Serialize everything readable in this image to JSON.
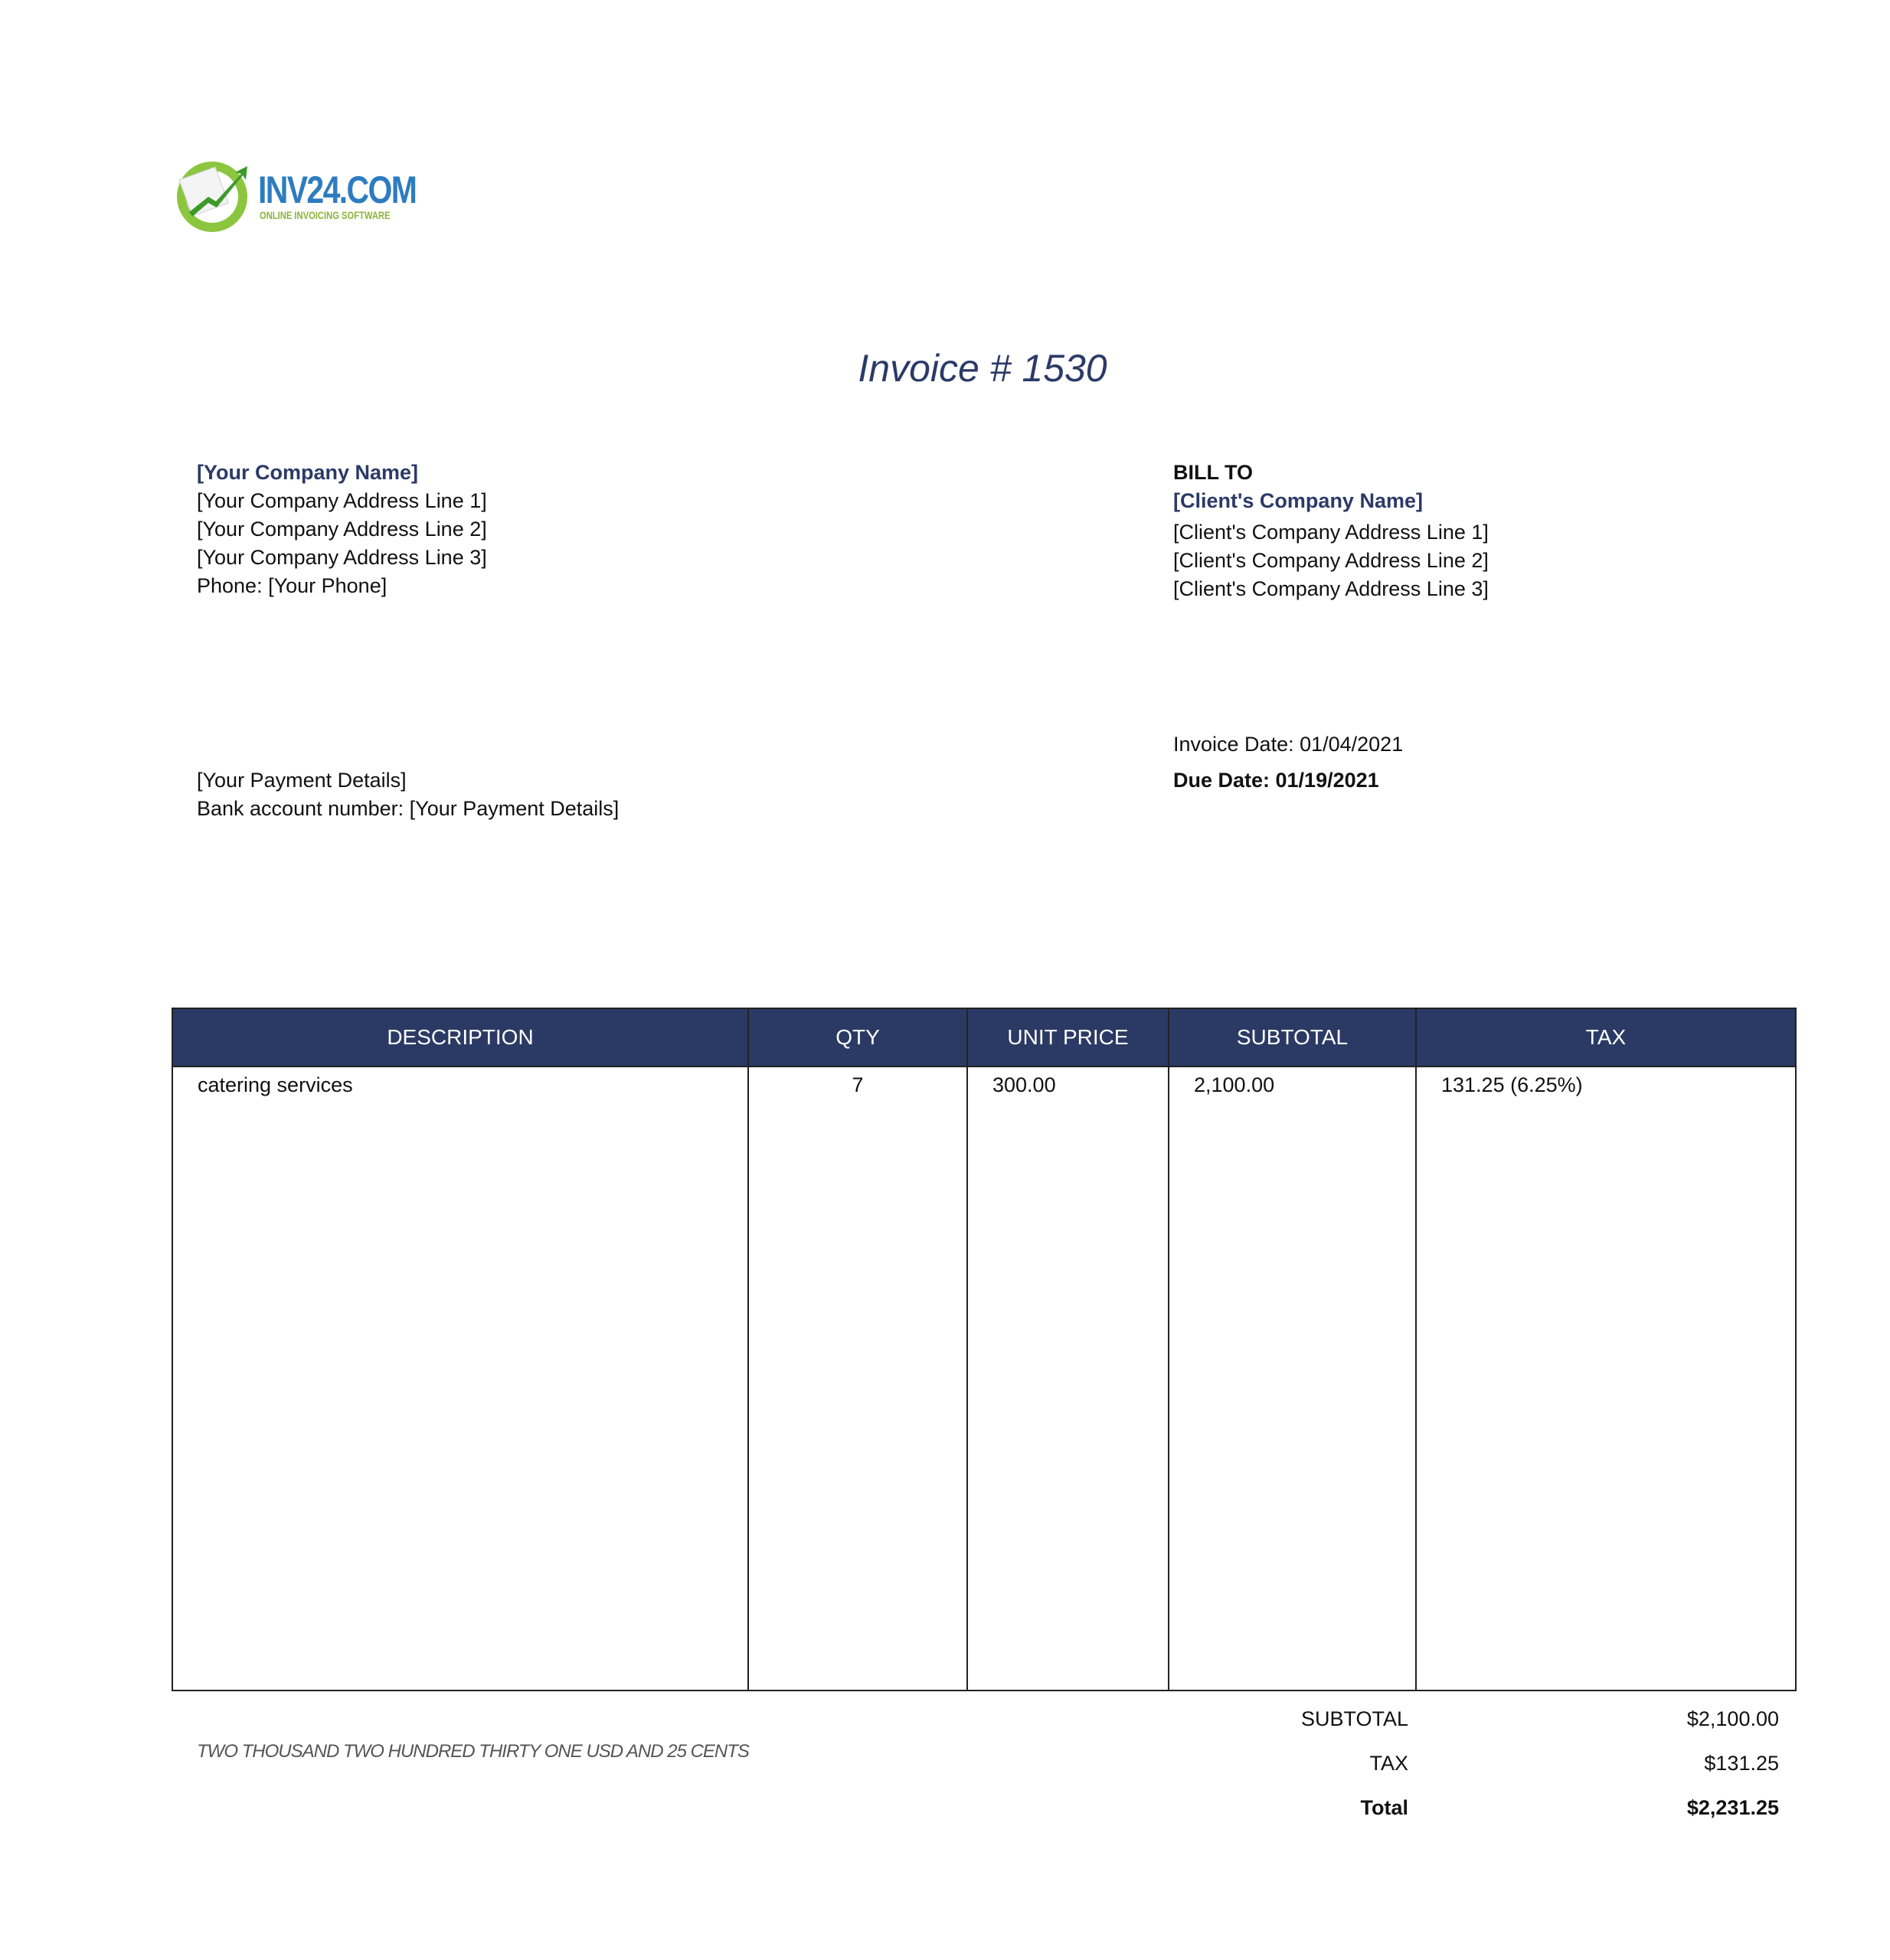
{
  "logo": {
    "brand": "INV24.COM",
    "tagline": "ONLINE INVOICING SOFTWARE"
  },
  "title": "Invoice #  1530",
  "company": {
    "name": "[Your Company Name]",
    "lines": [
      "[Your Company Address Line 1]",
      "[Your Company Address Line 2]",
      "[Your Company Address Line 3]",
      "Phone: [Your Phone]"
    ]
  },
  "bill_to": {
    "heading": "BILL TO",
    "name": "[Client's Company Name]",
    "lines": [
      "[Client's Company Address Line 1]",
      "[Client's Company Address Line 2]",
      "[Client's Company Address Line 3]"
    ]
  },
  "dates": {
    "invoice_date": "Invoice Date: 01/04/2021",
    "due_date": "Due Date: 01/19/2021"
  },
  "payment": {
    "line1": "[Your Payment Details]",
    "line2": "Bank account number: [Your Payment Details]"
  },
  "table": {
    "headers": [
      "DESCRIPTION",
      "QTY",
      "UNIT PRICE",
      "SUBTOTAL",
      "TAX"
    ],
    "rows": [
      [
        "catering services",
        "7",
        "300.00",
        "2,100.00",
        "131.25 (6.25%)"
      ]
    ]
  },
  "amount_words": "TWO THOUSAND  TWO HUNDRED THIRTY ONE USD AND 25 CENTS",
  "totals": {
    "subtotal_label": "SUBTOTAL",
    "subtotal": "$2,100.00",
    "tax_label": "TAX",
    "tax": "$131.25",
    "total_label": "Total",
    "total": "$2,231.25"
  },
  "colors": {
    "header_bg": "#2b3a64",
    "accent_text": "#2b3a67"
  }
}
